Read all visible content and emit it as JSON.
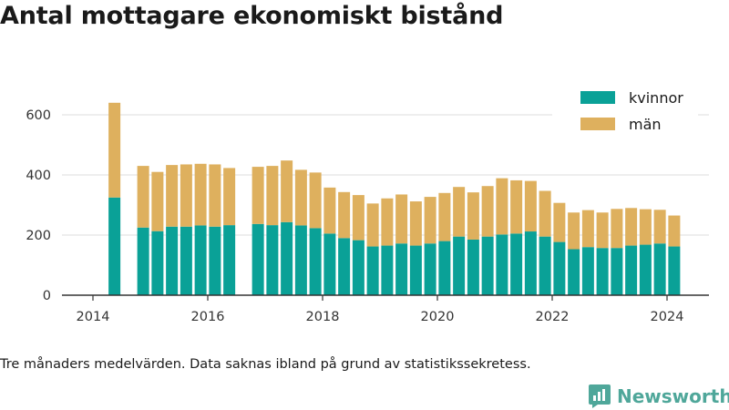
{
  "title": "Antal mottagare ekonomiskt bistånd",
  "footnote": "Tre månaders medelvärden. Data saknas ibland på grund av statistikssekretess.",
  "brand": "Newsworthy",
  "colors": {
    "kvinnor": "#0aa197",
    "man": "#deb05e",
    "grid": "#dddddd",
    "axis": "#333333",
    "brand": "#4fa79a"
  },
  "chart_data": {
    "type": "bar",
    "stacked": true,
    "ylim": [
      0,
      700
    ],
    "yticks": [
      0,
      200,
      400,
      600
    ],
    "xlim": [
      2013.75,
      2024.75
    ],
    "xticks": [
      2014,
      2016,
      2018,
      2020,
      2022,
      2024
    ],
    "grid": true,
    "legend_position": "top-right",
    "x": [
      2014.375,
      2014.875,
      2015.125,
      2015.375,
      2015.625,
      2015.875,
      2016.125,
      2016.375,
      2016.875,
      2017.125,
      2017.375,
      2017.625,
      2017.875,
      2018.125,
      2018.375,
      2018.625,
      2018.875,
      2019.125,
      2019.375,
      2019.625,
      2019.875,
      2020.125,
      2020.375,
      2020.625,
      2020.875,
      2021.125,
      2021.375,
      2021.625,
      2021.875,
      2022.125,
      2022.375,
      2022.625,
      2022.875,
      2023.125,
      2023.375,
      2023.625,
      2023.875,
      2024.125
    ],
    "series": [
      {
        "name": "kvinnor",
        "values": [
          325,
          225,
          213,
          228,
          228,
          232,
          228,
          233,
          237,
          233,
          243,
          232,
          223,
          205,
          190,
          183,
          162,
          165,
          172,
          165,
          172,
          180,
          195,
          185,
          195,
          202,
          205,
          212,
          195,
          177,
          153,
          160,
          157,
          157,
          165,
          168,
          172,
          162
        ]
      },
      {
        "name": "män",
        "values": [
          315,
          205,
          197,
          205,
          207,
          205,
          207,
          190,
          190,
          197,
          205,
          185,
          185,
          153,
          153,
          150,
          143,
          157,
          163,
          147,
          155,
          160,
          165,
          157,
          168,
          187,
          177,
          168,
          152,
          130,
          122,
          123,
          118,
          130,
          125,
          118,
          112,
          103
        ]
      }
    ]
  }
}
